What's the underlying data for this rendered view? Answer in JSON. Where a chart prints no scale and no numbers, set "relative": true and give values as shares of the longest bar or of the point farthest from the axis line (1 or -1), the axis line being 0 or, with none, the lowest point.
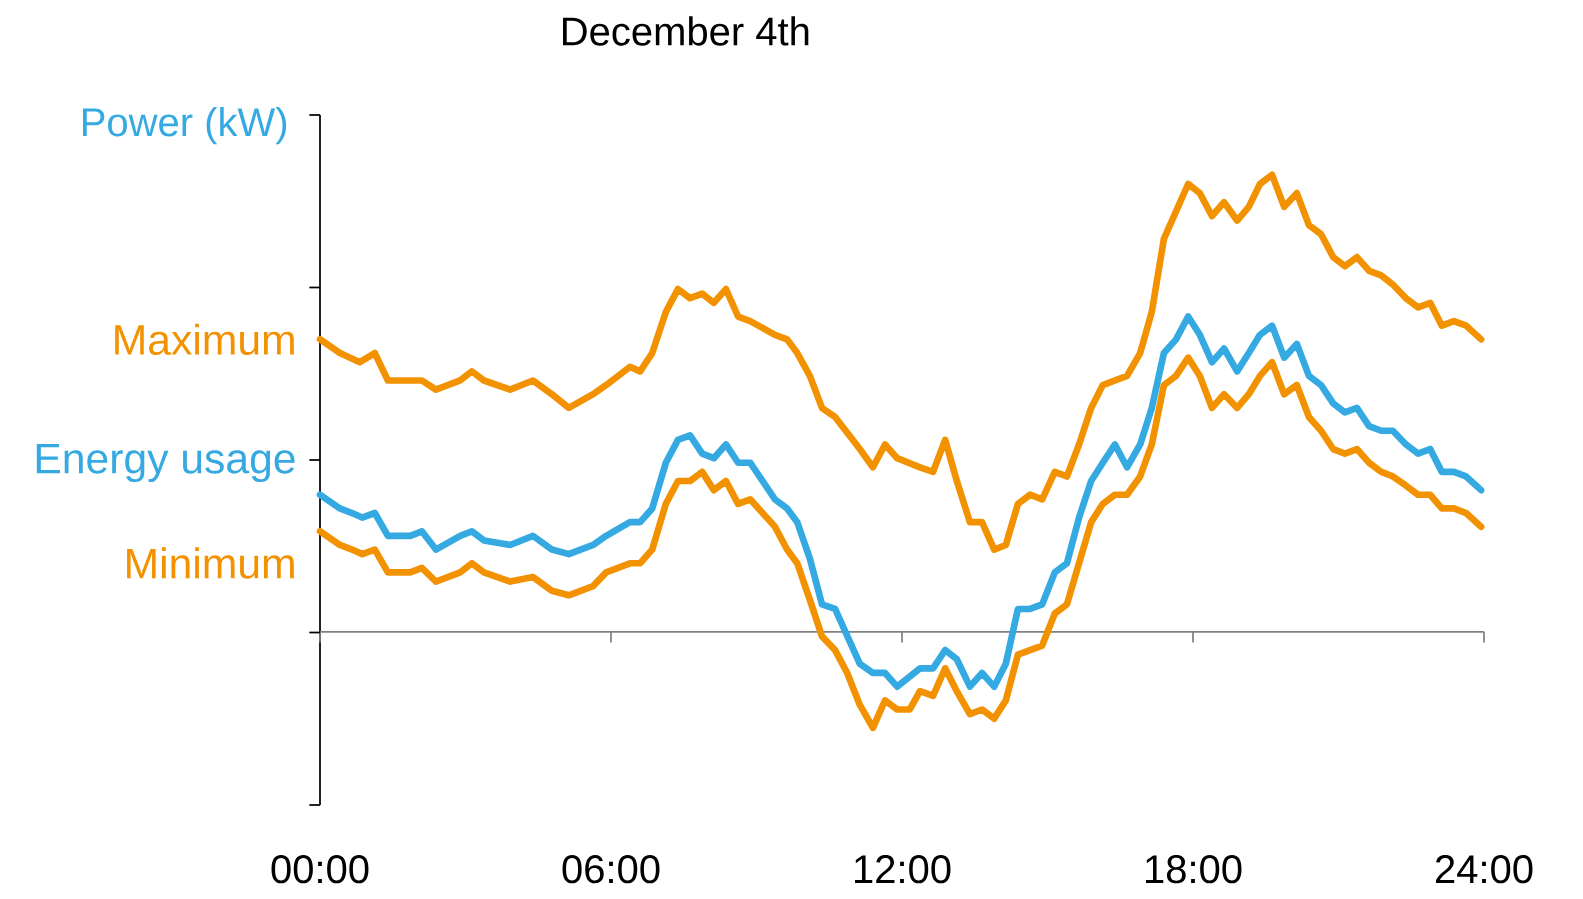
{
  "chart_data": {
    "type": "line",
    "title": "December 4th",
    "ylabel": "Power (kW)",
    "relative": true,
    "xlim": [
      0,
      24
    ],
    "xticks": [
      {
        "value": 0,
        "label": "00:00"
      },
      {
        "value": 6,
        "label": "06:00"
      },
      {
        "value": 12,
        "label": "12:00"
      },
      {
        "value": 18,
        "label": "18:00"
      },
      {
        "value": 24,
        "label": "24:00"
      }
    ],
    "series": [
      {
        "name": "Maximum",
        "color": "#f39200",
        "x": [
          0,
          0.41,
          0.82,
          1.13,
          1.4,
          1.86,
          2.1,
          2.39,
          2.89,
          3.13,
          3.38,
          3.65,
          3.92,
          4.39,
          4.78,
          5.13,
          5.63,
          5.9,
          6.39,
          6.6,
          6.85,
          7.13,
          7.38,
          7.63,
          7.88,
          8.12,
          8.37,
          8.62,
          8.87,
          9.38,
          9.63,
          9.84,
          10.1,
          10.35,
          10.62,
          11.13,
          11.4,
          11.65,
          11.9,
          12.37,
          12.64,
          12.89,
          13.13,
          13.4,
          13.65,
          13.9,
          14.14,
          14.39,
          14.64,
          14.89,
          15.15,
          15.4,
          15.65,
          15.9,
          16.14,
          16.39,
          16.64,
          16.91,
          17.15,
          17.4,
          17.65,
          17.9,
          18.14,
          18.39,
          18.64,
          18.91,
          19.15,
          19.38,
          19.63,
          19.88,
          20.14,
          20.39,
          20.64,
          20.89,
          21.13,
          21.38,
          21.63,
          21.88,
          22.12,
          22.39,
          22.64,
          22.89,
          23.13,
          23.38,
          23.63,
          23.94
        ],
        "values": [
          0.64,
          0.61,
          0.59,
          0.61,
          0.55,
          0.55,
          0.55,
          0.53,
          0.55,
          0.57,
          0.55,
          0.54,
          0.53,
          0.55,
          0.52,
          0.49,
          0.52,
          0.54,
          0.58,
          0.57,
          0.61,
          0.7,
          0.75,
          0.73,
          0.74,
          0.72,
          0.75,
          0.69,
          0.68,
          0.65,
          0.64,
          0.61,
          0.56,
          0.49,
          0.47,
          0.4,
          0.36,
          0.41,
          0.38,
          0.36,
          0.35,
          0.42,
          0.33,
          0.24,
          0.24,
          0.18,
          0.19,
          0.28,
          0.3,
          0.29,
          0.35,
          0.34,
          0.41,
          0.49,
          0.54,
          0.55,
          0.56,
          0.61,
          0.7,
          0.86,
          0.92,
          0.98,
          0.96,
          0.91,
          0.94,
          0.9,
          0.93,
          0.98,
          1.0,
          0.93,
          0.96,
          0.89,
          0.87,
          0.82,
          0.8,
          0.82,
          0.79,
          0.78,
          0.76,
          0.73,
          0.71,
          0.72,
          0.67,
          0.68,
          0.67,
          0.64
        ]
      },
      {
        "name": "Energy usage",
        "color": "#35a9e1",
        "x": [
          0,
          0.41,
          0.66,
          0.87,
          1.13,
          1.4,
          1.86,
          2.1,
          2.39,
          2.89,
          3.13,
          3.38,
          3.92,
          4.39,
          4.78,
          5.13,
          5.63,
          5.9,
          6.39,
          6.6,
          6.85,
          7.13,
          7.38,
          7.63,
          7.88,
          8.12,
          8.37,
          8.62,
          8.87,
          9.38,
          9.63,
          9.84,
          10.1,
          10.35,
          10.62,
          11.13,
          11.4,
          11.65,
          11.9,
          12.37,
          12.64,
          12.89,
          13.13,
          13.4,
          13.65,
          13.9,
          14.14,
          14.39,
          14.64,
          14.89,
          15.15,
          15.4,
          15.65,
          15.9,
          16.14,
          16.39,
          16.64,
          16.91,
          17.15,
          17.4,
          17.65,
          17.9,
          18.14,
          18.39,
          18.64,
          18.91,
          19.15,
          19.38,
          19.63,
          19.88,
          20.14,
          20.39,
          20.64,
          20.89,
          21.13,
          21.38,
          21.63,
          21.88,
          22.12,
          22.39,
          22.64,
          22.89,
          23.13,
          23.38,
          23.63,
          23.94
        ],
        "values": [
          0.3,
          0.27,
          0.26,
          0.25,
          0.26,
          0.21,
          0.21,
          0.22,
          0.18,
          0.21,
          0.22,
          0.2,
          0.19,
          0.21,
          0.18,
          0.17,
          0.19,
          0.21,
          0.24,
          0.24,
          0.27,
          0.37,
          0.42,
          0.43,
          0.39,
          0.38,
          0.41,
          0.37,
          0.37,
          0.29,
          0.27,
          0.24,
          0.16,
          0.06,
          0.05,
          -0.07,
          -0.09,
          -0.09,
          -0.12,
          -0.08,
          -0.08,
          -0.04,
          -0.06,
          -0.12,
          -0.09,
          -0.12,
          -0.07,
          0.05,
          0.05,
          0.06,
          0.13,
          0.15,
          0.25,
          0.33,
          0.37,
          0.41,
          0.36,
          0.41,
          0.49,
          0.61,
          0.64,
          0.69,
          0.65,
          0.59,
          0.62,
          0.57,
          0.61,
          0.65,
          0.67,
          0.6,
          0.63,
          0.56,
          0.54,
          0.5,
          0.48,
          0.49,
          0.45,
          0.44,
          0.44,
          0.41,
          0.39,
          0.4,
          0.35,
          0.35,
          0.34,
          0.31
        ]
      },
      {
        "name": "Minimum",
        "color": "#f39200",
        "x": [
          0,
          0.41,
          0.66,
          0.87,
          1.13,
          1.4,
          1.86,
          2.1,
          2.39,
          2.89,
          3.13,
          3.38,
          3.92,
          4.39,
          4.78,
          5.13,
          5.63,
          5.9,
          6.39,
          6.6,
          6.85,
          7.13,
          7.38,
          7.63,
          7.88,
          8.12,
          8.37,
          8.62,
          8.87,
          9.38,
          9.63,
          9.84,
          10.1,
          10.35,
          10.62,
          10.87,
          11.13,
          11.4,
          11.65,
          11.9,
          12.16,
          12.37,
          12.64,
          12.89,
          13.13,
          13.4,
          13.65,
          13.9,
          14.14,
          14.39,
          14.64,
          14.89,
          15.15,
          15.4,
          15.65,
          15.9,
          16.14,
          16.39,
          16.64,
          16.91,
          17.15,
          17.4,
          17.65,
          17.9,
          18.14,
          18.39,
          18.64,
          18.91,
          19.15,
          19.38,
          19.63,
          19.88,
          20.14,
          20.39,
          20.64,
          20.89,
          21.13,
          21.38,
          21.63,
          21.88,
          22.12,
          22.39,
          22.64,
          22.89,
          23.13,
          23.38,
          23.63,
          23.94
        ],
        "values": [
          0.22,
          0.19,
          0.18,
          0.17,
          0.18,
          0.13,
          0.13,
          0.14,
          0.11,
          0.13,
          0.15,
          0.13,
          0.11,
          0.12,
          0.09,
          0.08,
          0.1,
          0.13,
          0.15,
          0.15,
          0.18,
          0.28,
          0.33,
          0.33,
          0.35,
          0.31,
          0.33,
          0.28,
          0.29,
          0.23,
          0.18,
          0.15,
          0.07,
          -0.01,
          -0.04,
          -0.09,
          -0.16,
          -0.21,
          -0.15,
          -0.17,
          -0.17,
          -0.13,
          -0.14,
          -0.08,
          -0.13,
          -0.18,
          -0.17,
          -0.19,
          -0.15,
          -0.05,
          -0.04,
          -0.03,
          0.04,
          0.06,
          0.15,
          0.24,
          0.28,
          0.3,
          0.3,
          0.34,
          0.41,
          0.54,
          0.56,
          0.6,
          0.56,
          0.49,
          0.52,
          0.49,
          0.52,
          0.56,
          0.59,
          0.52,
          0.54,
          0.47,
          0.44,
          0.4,
          0.39,
          0.4,
          0.37,
          0.35,
          0.34,
          0.32,
          0.3,
          0.3,
          0.27,
          0.27,
          0.26,
          0.23
        ]
      }
    ]
  }
}
